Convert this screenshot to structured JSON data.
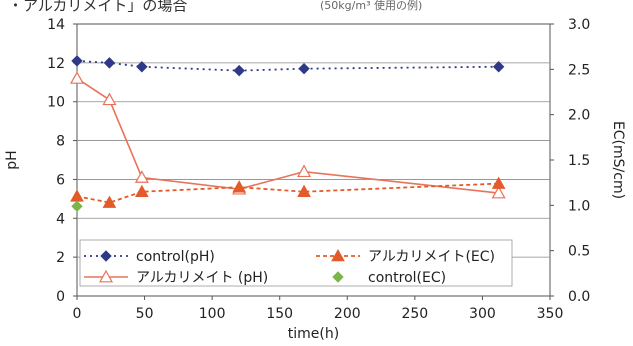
{
  "header": {
    "title": "・アルカリメイト」の場合",
    "note": "(50kg/m³ 使用の例)"
  },
  "chart_data": {
    "type": "line",
    "title": "",
    "xlabel": "time(h)",
    "ylabel": "pH",
    "y2label": "EC(mS/cm)",
    "xlim": [
      0,
      350
    ],
    "ylim": [
      0,
      14
    ],
    "y2lim": [
      0.0,
      3.0
    ],
    "x_ticks": [
      "0",
      "50",
      "100",
      "150",
      "200",
      "250",
      "300",
      "350"
    ],
    "y_ticks": [
      "0",
      "2",
      "4",
      "6",
      "8",
      "10",
      "12",
      "14"
    ],
    "y2_ticks": [
      "0.0",
      "0.5",
      "1.0",
      "1.5",
      "2.0",
      "2.5",
      "3.0"
    ],
    "grid": "horizontal",
    "legend": "bottom-left",
    "series": [
      {
        "name": "control(pH)",
        "axis": "left",
        "style": "dotted",
        "marker": "diamond",
        "color": "#2e3a87",
        "x": [
          0,
          24,
          48,
          120,
          168,
          312
        ],
        "y": [
          12.1,
          12.0,
          11.8,
          11.6,
          11.7,
          11.8
        ]
      },
      {
        "name": "アルカリメイト (pH)",
        "axis": "left",
        "style": "solid",
        "marker": "triangle-open",
        "color": "#e8735a",
        "x": [
          0,
          24,
          48,
          120,
          168,
          312
        ],
        "y": [
          11.2,
          10.1,
          6.1,
          5.5,
          6.4,
          5.3
        ]
      },
      {
        "name": "アルカリメイト(EC)",
        "axis": "right",
        "style": "dashed",
        "marker": "triangle",
        "color": "#e35b2a",
        "x": [
          0,
          24,
          48,
          120,
          168,
          312
        ],
        "y": [
          1.1,
          1.03,
          1.15,
          1.2,
          1.15,
          1.24
        ]
      },
      {
        "name": "control(EC)",
        "axis": "right",
        "style": "none",
        "marker": "diamond",
        "color": "#7ab648",
        "x": [
          0
        ],
        "y": [
          0.99
        ]
      }
    ]
  }
}
